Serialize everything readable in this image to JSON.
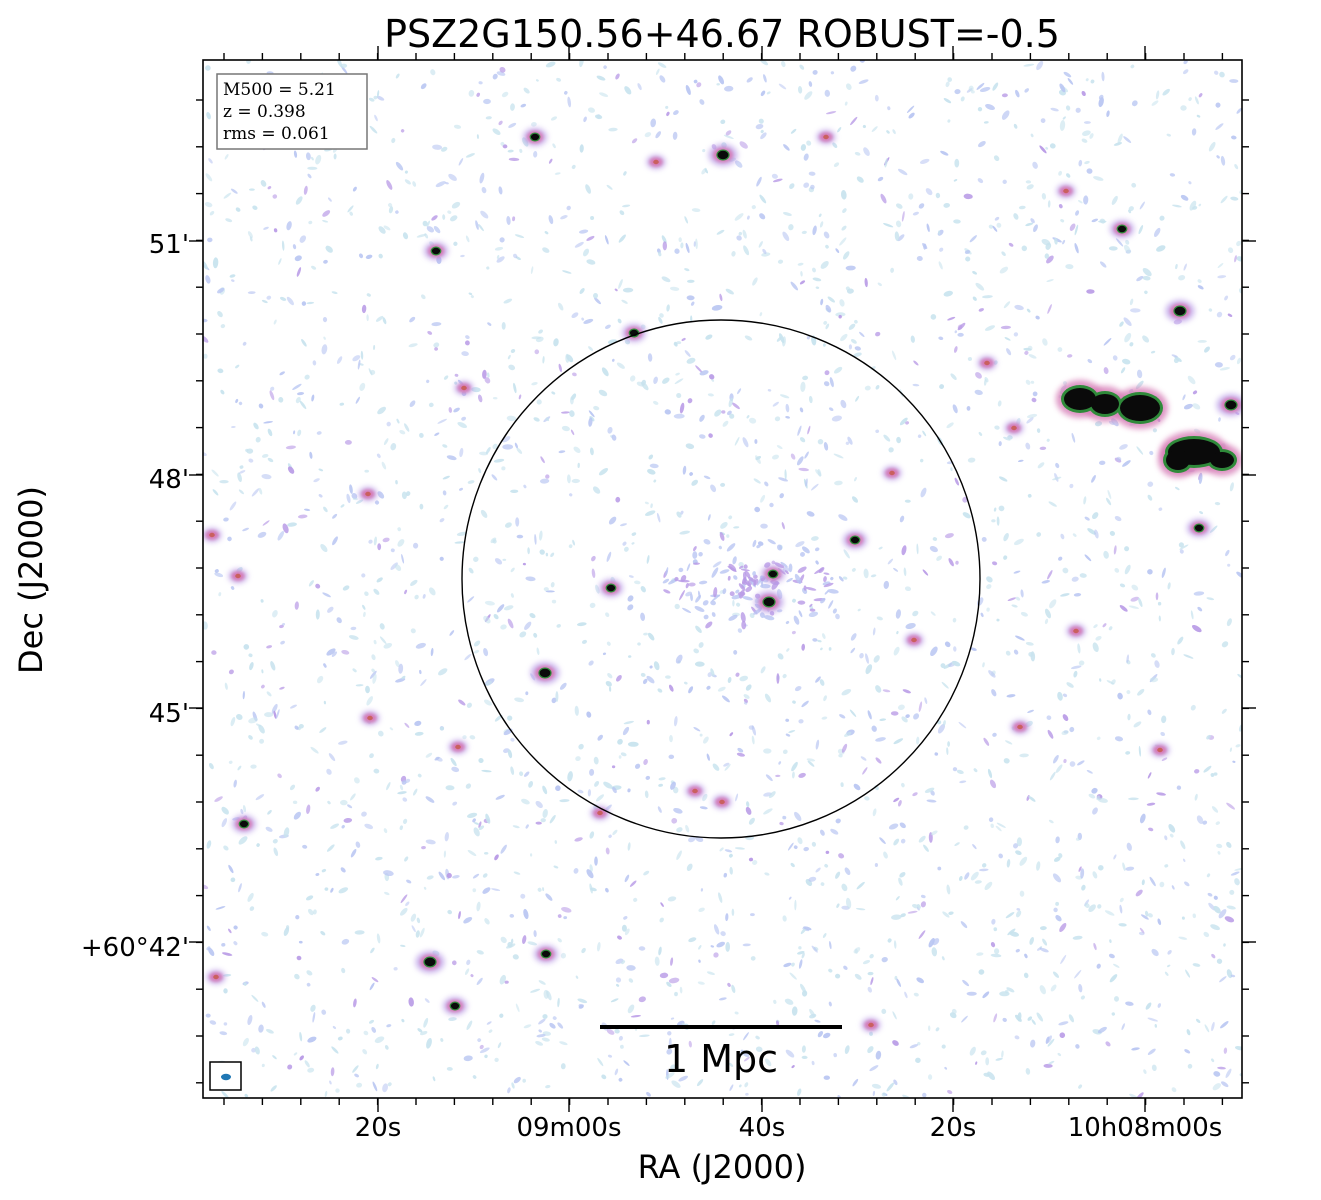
{
  "chart_data": {
    "type": "heatmap",
    "title": "PSZ2G150.56+46.67 ROBUST=-0.5",
    "xlabel": "RA (J2000)",
    "ylabel": "Dec (J2000)",
    "x_ticks": [
      "20s",
      "09m00s",
      "40s",
      "20s",
      "10h08m00s"
    ],
    "y_ticks": [
      "51'",
      "48'",
      "45'",
      "+60°42'"
    ],
    "info_box": [
      "M500 = 5.21",
      "z = 0.398",
      "rms = 0.061"
    ],
    "scale_bar_label": "1 Mpc",
    "circle": "cluster aperture centred on the field",
    "colormap": [
      "#c8e3ee",
      "#b9c6f2",
      "#b89ae6",
      "#d67bb6",
      "#c9605f",
      "#2f8a3a",
      "#0a0a0a"
    ],
    "grid": false
  }
}
